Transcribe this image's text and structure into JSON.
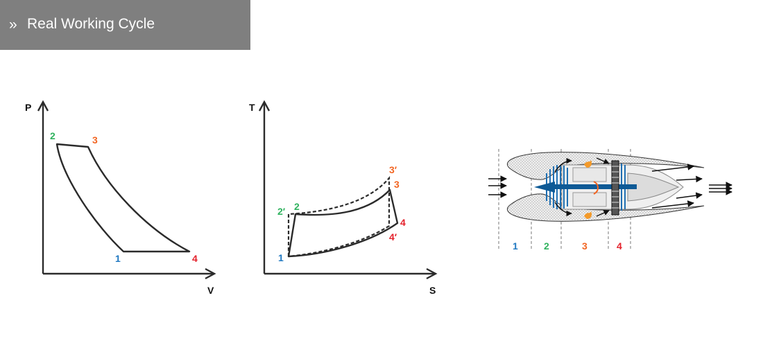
{
  "header": {
    "chevron": "»",
    "title": "Real Working Cycle"
  },
  "colors": {
    "state1": "#1f78c1",
    "state2": "#2fb25e",
    "state3": "#f26522",
    "state4": "#e4222c",
    "axis": "#2b2b2b",
    "header_bg": "#7f7f7f"
  },
  "pv_diagram": {
    "axis_y": "P",
    "axis_x": "V",
    "points": {
      "p1": "1",
      "p2": "2",
      "p3": "3",
      "p4": "4"
    }
  },
  "ts_diagram": {
    "axis_y": "T",
    "axis_x": "S",
    "points": {
      "p1": "1",
      "p2": "2",
      "p2p": "2′",
      "p3": "3",
      "p3p": "3′",
      "p4": "4",
      "p4p": "4′"
    }
  },
  "engine": {
    "sections": {
      "s1": "1",
      "s2": "2",
      "s3": "3",
      "s4": "4"
    }
  }
}
